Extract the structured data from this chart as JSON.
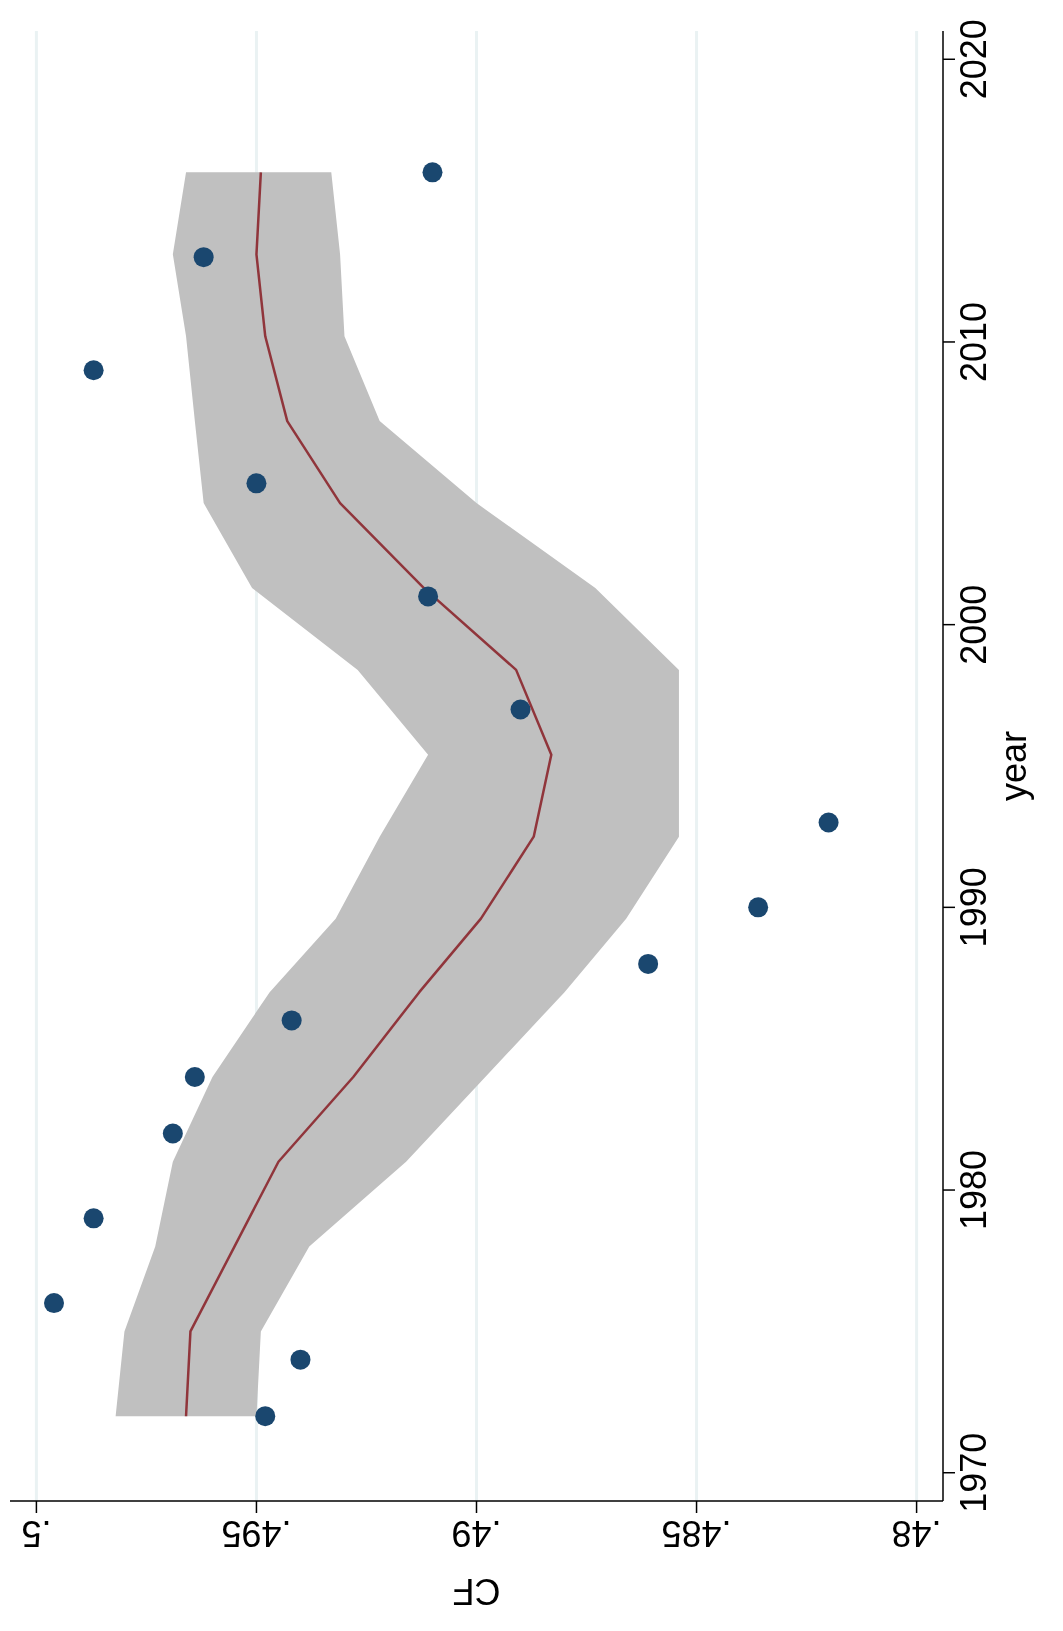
{
  "chart_data": {
    "type": "scatter",
    "orientation": "horizontal",
    "xlabel": "CF",
    "ylabel": "year",
    "xlim": [
      0.5006,
      0.4794
    ],
    "ylim": [
      1969,
      2021
    ],
    "yticks": [
      1970,
      1980,
      1990,
      2000,
      2010,
      2020
    ],
    "xticks": [
      {
        "value": 0.5,
        "label": ".5"
      },
      {
        "value": 0.495,
        "label": ".495"
      },
      {
        "value": 0.49,
        "label": ".49"
      },
      {
        "value": 0.485,
        "label": ".485"
      },
      {
        "value": 0.48,
        "label": ".48"
      }
    ],
    "grid": "x",
    "marker": "circle",
    "series": [
      {
        "type": "line",
        "color": "#90353b",
        "line_style": "solid",
        "marker": "none",
        "x": [
          1972,
          1975,
          1978,
          1981,
          1984,
          1987,
          1989.6,
          1992.5,
          1995.4,
          1998.4,
          2001.3,
          2004.3,
          2007.2,
          2010.2,
          2013.1,
          2016
        ],
        "values": [
          0.4966,
          0.4965,
          0.4955,
          0.4945,
          0.4928,
          0.4913,
          0.4899,
          0.4887,
          0.4883,
          0.4891,
          0.4912,
          0.4931,
          0.4943,
          0.4948,
          0.495,
          0.4949
        ],
        "lower": [
          0.495,
          0.4949,
          0.4938,
          0.4916,
          0.4898,
          0.488,
          0.4866,
          0.4854,
          0.4854,
          0.4854,
          0.4873,
          0.49,
          0.4922,
          0.493,
          0.4931,
          0.4933
        ],
        "upper": [
          0.4982,
          0.498,
          0.4973,
          0.4969,
          0.496,
          0.4947,
          0.4932,
          0.4922,
          0.4911,
          0.4927,
          0.4951,
          0.4962,
          0.4964,
          0.4966,
          0.4969,
          0.4966
        ]
      },
      {
        "color": "#1a476f",
        "x": [
          1972,
          1974,
          1976,
          1979,
          1982,
          1984,
          1986,
          1988,
          1990,
          1993,
          1997,
          2001,
          2005,
          2009,
          2013,
          2016
        ],
        "values": [
          0.4948,
          0.494,
          0.4996,
          0.4987,
          0.4969,
          0.4964,
          0.4942,
          0.4861,
          0.4836,
          0.482,
          0.489,
          0.4911,
          0.495,
          0.4987,
          0.4962,
          0.491
        ]
      }
    ]
  }
}
